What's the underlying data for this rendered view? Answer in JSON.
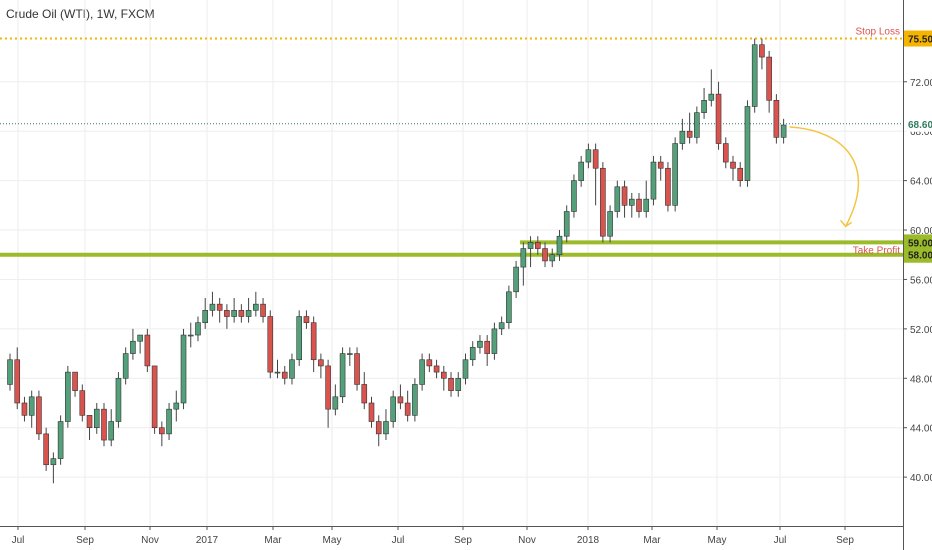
{
  "header": {
    "title": "Crude Oil (WTI), 1W, FXCM"
  },
  "chart_data": {
    "type": "candlestick",
    "title": "Crude Oil (WTI), 1W, FXCM",
    "ylim": [
      37.5,
      77.0
    ],
    "y_ticks": [
      40.0,
      44.0,
      48.0,
      52.0,
      56.0,
      60.0,
      64.0,
      68.0,
      72.0
    ],
    "x_ticks": [
      "Jul",
      "Sep",
      "Nov",
      "2017",
      "Mar",
      "May",
      "Jul",
      "Sep",
      "Nov",
      "2018",
      "Mar",
      "May",
      "Jul",
      "Sep"
    ],
    "grid": true,
    "colors": {
      "up": "#53a07a",
      "down": "#d9534f",
      "wick": "#444444",
      "stop": "#f4b400",
      "target": "#9bbb2a",
      "current": "#2e7d5b",
      "arrow": "#f4c542"
    },
    "levels": {
      "stop_loss": {
        "label": "Stop Loss",
        "value_label": "75.50",
        "value": 75.5
      },
      "take_profit": {
        "label": "Take Profit",
        "value_label": "59.00",
        "value": 59.0
      },
      "support": {
        "value_label": "58.00",
        "value": 58.0
      },
      "current": {
        "value_label": "68.60",
        "value": 68.6
      }
    },
    "candles": [
      [
        47.5,
        49.5,
        47.0,
        50.0
      ],
      [
        49.5,
        46.0,
        45.5,
        50.5
      ],
      [
        46.0,
        45.0,
        44.5,
        46.5
      ],
      [
        45.0,
        46.5,
        44.0,
        47.0
      ],
      [
        46.5,
        43.5,
        43.0,
        47.0
      ],
      [
        43.5,
        41.0,
        40.5,
        44.0
      ],
      [
        41.0,
        41.5,
        39.5,
        42.0
      ],
      [
        41.5,
        44.5,
        41.0,
        45.0
      ],
      [
        44.5,
        48.5,
        44.0,
        49.0
      ],
      [
        48.5,
        47.0,
        46.5,
        48.5
      ],
      [
        47.0,
        45.0,
        44.5,
        47.5
      ],
      [
        45.0,
        44.0,
        43.0,
        45.0
      ],
      [
        44.0,
        45.5,
        43.5,
        46.0
      ],
      [
        45.5,
        43.0,
        42.5,
        46.0
      ],
      [
        43.0,
        44.5,
        42.5,
        45.5
      ],
      [
        44.5,
        48.0,
        44.0,
        48.5
      ],
      [
        48.0,
        50.0,
        47.5,
        50.5
      ],
      [
        50.0,
        51.0,
        49.5,
        52.0
      ],
      [
        51.0,
        51.5,
        50.0,
        51.5
      ],
      [
        51.5,
        49.0,
        48.5,
        52.0
      ],
      [
        49.0,
        44.0,
        43.5,
        49.0
      ],
      [
        44.0,
        43.5,
        42.5,
        44.5
      ],
      [
        43.5,
        45.5,
        43.0,
        46.0
      ],
      [
        45.5,
        46.0,
        44.5,
        47.0
      ],
      [
        46.0,
        51.5,
        45.5,
        52.0
      ],
      [
        51.5,
        51.5,
        50.5,
        52.5
      ],
      [
        51.5,
        52.5,
        51.0,
        53.0
      ],
      [
        52.5,
        53.5,
        52.0,
        54.5
      ],
      [
        53.5,
        54.0,
        53.0,
        55.0
      ],
      [
        54.0,
        53.5,
        52.5,
        54.5
      ],
      [
        53.5,
        53.0,
        52.0,
        54.0
      ],
      [
        53.0,
        53.5,
        52.5,
        54.5
      ],
      [
        53.5,
        53.0,
        52.5,
        54.0
      ],
      [
        53.0,
        53.5,
        52.5,
        54.5
      ],
      [
        53.5,
        54.0,
        53.0,
        55.0
      ],
      [
        54.0,
        53.0,
        52.5,
        54.5
      ],
      [
        53.0,
        48.5,
        48.0,
        53.5
      ],
      [
        48.5,
        48.5,
        48.0,
        49.5
      ],
      [
        48.5,
        48.0,
        47.5,
        49.0
      ],
      [
        48.0,
        49.5,
        47.5,
        50.0
      ],
      [
        49.5,
        53.0,
        49.0,
        53.5
      ],
      [
        53.0,
        52.5,
        52.0,
        53.5
      ],
      [
        52.5,
        49.5,
        48.5,
        53.0
      ],
      [
        49.5,
        49.0,
        48.0,
        50.0
      ],
      [
        49.0,
        45.5,
        44.0,
        49.5
      ],
      [
        45.5,
        46.5,
        45.0,
        47.5
      ],
      [
        46.5,
        50.0,
        46.0,
        50.5
      ],
      [
        50.0,
        50.0,
        49.0,
        50.5
      ],
      [
        50.0,
        47.5,
        47.0,
        50.5
      ],
      [
        47.5,
        46.0,
        45.5,
        48.5
      ],
      [
        46.0,
        44.5,
        44.0,
        46.5
      ],
      [
        44.5,
        43.5,
        42.5,
        45.0
      ],
      [
        43.5,
        44.5,
        43.0,
        45.5
      ],
      [
        44.5,
        46.5,
        44.0,
        47.0
      ],
      [
        46.5,
        46.0,
        45.5,
        47.5
      ],
      [
        46.0,
        45.0,
        44.5,
        47.0
      ],
      [
        45.0,
        47.5,
        44.5,
        48.0
      ],
      [
        47.5,
        49.5,
        47.0,
        50.0
      ],
      [
        49.5,
        49.0,
        48.5,
        50.0
      ],
      [
        49.0,
        48.5,
        48.0,
        49.5
      ],
      [
        48.5,
        48.0,
        47.0,
        49.0
      ],
      [
        48.0,
        47.0,
        46.5,
        48.5
      ],
      [
        47.0,
        48.0,
        46.5,
        48.5
      ],
      [
        48.0,
        49.5,
        47.5,
        50.0
      ],
      [
        49.5,
        50.5,
        49.0,
        51.0
      ],
      [
        50.5,
        51.0,
        50.0,
        51.5
      ],
      [
        51.0,
        50.0,
        49.0,
        51.5
      ],
      [
        50.0,
        52.0,
        49.5,
        52.5
      ],
      [
        52.0,
        52.5,
        51.5,
        53.0
      ],
      [
        52.5,
        55.0,
        52.0,
        55.5
      ],
      [
        55.0,
        57.0,
        54.5,
        57.5
      ],
      [
        57.0,
        58.5,
        55.5,
        59.0
      ],
      [
        58.5,
        59.0,
        57.0,
        59.5
      ],
      [
        59.0,
        58.5,
        58.0,
        59.5
      ],
      [
        58.5,
        57.5,
        57.0,
        59.0
      ],
      [
        57.5,
        58.0,
        57.0,
        58.5
      ],
      [
        58.0,
        59.5,
        57.5,
        60.0
      ],
      [
        59.5,
        61.5,
        59.0,
        62.0
      ],
      [
        61.5,
        64.0,
        61.0,
        64.5
      ],
      [
        64.0,
        65.5,
        63.5,
        66.0
      ],
      [
        65.5,
        66.5,
        65.0,
        67.0
      ],
      [
        66.5,
        65.0,
        62.0,
        67.0
      ],
      [
        65.0,
        59.5,
        59.0,
        65.5
      ],
      [
        59.5,
        61.5,
        59.0,
        62.0
      ],
      [
        61.5,
        63.5,
        61.0,
        64.0
      ],
      [
        63.5,
        62.0,
        61.0,
        64.0
      ],
      [
        62.0,
        62.5,
        61.0,
        63.0
      ],
      [
        62.5,
        61.5,
        61.0,
        63.0
      ],
      [
        61.5,
        62.5,
        61.0,
        64.0
      ],
      [
        62.5,
        65.5,
        62.0,
        66.0
      ],
      [
        65.5,
        65.0,
        64.0,
        66.0
      ],
      [
        65.0,
        62.0,
        61.5,
        65.5
      ],
      [
        62.0,
        67.0,
        61.5,
        67.5
      ],
      [
        67.0,
        68.0,
        66.5,
        69.0
      ],
      [
        68.0,
        67.5,
        67.0,
        69.5
      ],
      [
        67.5,
        69.5,
        67.0,
        70.0
      ],
      [
        69.5,
        70.5,
        69.0,
        71.5
      ],
      [
        70.5,
        71.0,
        70.0,
        73.0
      ],
      [
        71.0,
        67.0,
        66.5,
        72.0
      ],
      [
        67.0,
        65.5,
        65.0,
        67.5
      ],
      [
        65.5,
        65.0,
        64.0,
        66.0
      ],
      [
        65.0,
        64.0,
        63.5,
        65.5
      ],
      [
        64.0,
        70.0,
        63.5,
        70.5
      ],
      [
        70.0,
        75.0,
        69.5,
        75.5
      ],
      [
        75.0,
        74.0,
        73.0,
        75.5
      ],
      [
        74.0,
        70.5,
        69.5,
        74.5
      ],
      [
        70.5,
        67.5,
        67.0,
        71.0
      ],
      [
        67.5,
        68.5,
        67.0,
        69.0
      ]
    ]
  }
}
